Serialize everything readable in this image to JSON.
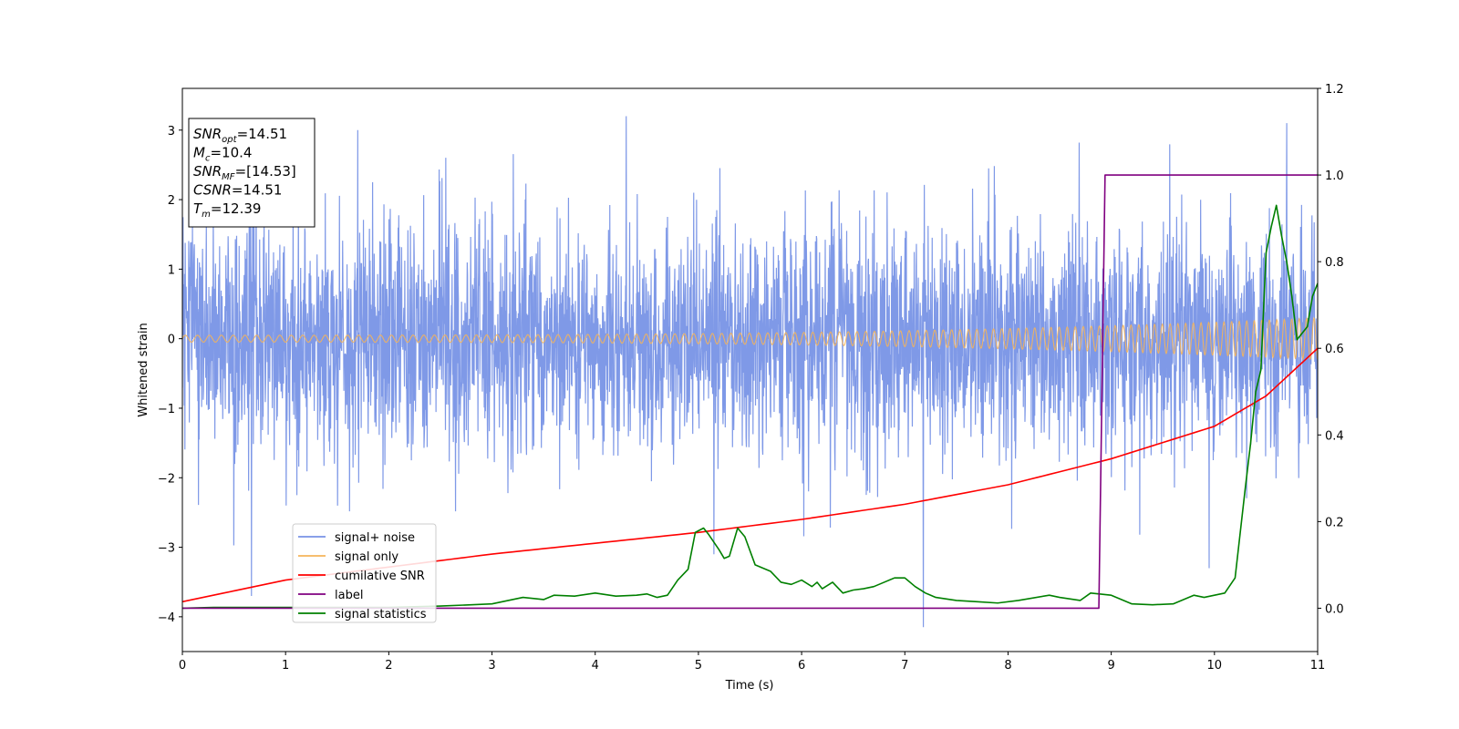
{
  "chart_data": {
    "type": "line",
    "xlabel": "Time (s)",
    "ylabel": "Whitened strain",
    "xlim": [
      0,
      11
    ],
    "ylim": [
      -4.5,
      3.6
    ],
    "y2lim": [
      -0.1,
      1.2
    ],
    "x_ticks": [
      0,
      1,
      2,
      3,
      4,
      5,
      6,
      7,
      8,
      9,
      10,
      11
    ],
    "y_ticks": [
      -4,
      -3,
      -2,
      -1,
      0,
      1,
      2,
      3
    ],
    "y_tick_labels": [
      "−4",
      "−3",
      "−2",
      "−1",
      "0",
      "1",
      "2",
      "3"
    ],
    "y2_ticks": [
      0.0,
      0.2,
      0.4,
      0.6,
      0.8,
      1.0,
      1.2
    ],
    "y2_tick_labels": [
      "0.0",
      "0.2",
      "0.4",
      "0.6",
      "0.8",
      "1.0",
      "1.2"
    ],
    "legend_placement": "lower-left",
    "annotation": [
      {
        "main": "SNR",
        "sub": "opt",
        "rest": "=14.51"
      },
      {
        "main": "M",
        "sub": "c",
        "rest": "=10.4"
      },
      {
        "main": "SNR",
        "sub": "MF",
        "rest": "=[14.53]"
      },
      {
        "main": "CSNR",
        "sub": "",
        "rest": "=14.51"
      },
      {
        "main": "T",
        "sub": "m",
        "rest": "=12.39"
      }
    ],
    "series": [
      {
        "name": "signal+ noise",
        "axis": "left",
        "color": "#7893e6",
        "description": "whitened noise, std ~1, peaks to about +3 and -4.2",
        "extremes": [
          [
            0.67,
            -3.7
          ],
          [
            1.7,
            3.0
          ],
          [
            5.15,
            -3.1
          ],
          [
            7.18,
            -4.15
          ],
          [
            4.3,
            3.2
          ],
          [
            9.95,
            -3.3
          ],
          [
            10.7,
            3.1
          ]
        ]
      },
      {
        "name": "signal only",
        "axis": "left",
        "color": "#f5b45a",
        "amplitude_start": 0.05,
        "amplitude_end": 0.3
      },
      {
        "name": "cumilative SNR",
        "axis": "right",
        "color": "#ff0000",
        "x": [
          0,
          1,
          2,
          3,
          4,
          5,
          6,
          7,
          8,
          9,
          10,
          10.5,
          11
        ],
        "values": [
          0.015,
          0.065,
          0.095,
          0.125,
          0.15,
          0.175,
          0.205,
          0.24,
          0.285,
          0.345,
          0.42,
          0.49,
          0.6
        ]
      },
      {
        "name": "label",
        "axis": "right",
        "color": "#800080",
        "x": [
          0,
          8.88,
          8.94,
          11
        ],
        "values": [
          0,
          0,
          1,
          1
        ]
      },
      {
        "name": "signal statistics",
        "axis": "right",
        "color": "#008000",
        "x": [
          0,
          0.3,
          1,
          2,
          2.5,
          2.8,
          3.0,
          3.2,
          3.3,
          3.5,
          3.6,
          3.8,
          4.0,
          4.2,
          4.4,
          4.5,
          4.6,
          4.7,
          4.8,
          4.9,
          4.97,
          5.05,
          5.1,
          5.2,
          5.25,
          5.3,
          5.38,
          5.45,
          5.55,
          5.7,
          5.8,
          5.9,
          6.0,
          6.1,
          6.15,
          6.2,
          6.3,
          6.4,
          6.5,
          6.6,
          6.7,
          6.8,
          6.9,
          7.0,
          7.1,
          7.2,
          7.3,
          7.5,
          7.7,
          7.9,
          8.1,
          8.4,
          8.5,
          8.7,
          8.8,
          9.0,
          9.2,
          9.4,
          9.6,
          9.8,
          9.9,
          10.1,
          10.2,
          10.3,
          10.35,
          10.4,
          10.45,
          10.5,
          10.55,
          10.6,
          10.65,
          10.7,
          10.75,
          10.8,
          10.9,
          10.95,
          11.0
        ],
        "values": [
          0.0,
          0.002,
          0.002,
          0.002,
          0.005,
          0.008,
          0.01,
          0.02,
          0.025,
          0.02,
          0.03,
          0.028,
          0.035,
          0.028,
          0.03,
          0.033,
          0.025,
          0.03,
          0.065,
          0.09,
          0.175,
          0.185,
          0.17,
          0.135,
          0.115,
          0.12,
          0.185,
          0.165,
          0.1,
          0.085,
          0.06,
          0.055,
          0.065,
          0.05,
          0.06,
          0.045,
          0.06,
          0.035,
          0.042,
          0.045,
          0.05,
          0.06,
          0.07,
          0.07,
          0.05,
          0.035,
          0.025,
          0.018,
          0.015,
          0.012,
          0.018,
          0.03,
          0.025,
          0.018,
          0.035,
          0.03,
          0.01,
          0.008,
          0.01,
          0.03,
          0.025,
          0.035,
          0.07,
          0.28,
          0.38,
          0.5,
          0.55,
          0.82,
          0.88,
          0.93,
          0.86,
          0.8,
          0.72,
          0.62,
          0.65,
          0.72,
          0.75
        ]
      }
    ]
  }
}
